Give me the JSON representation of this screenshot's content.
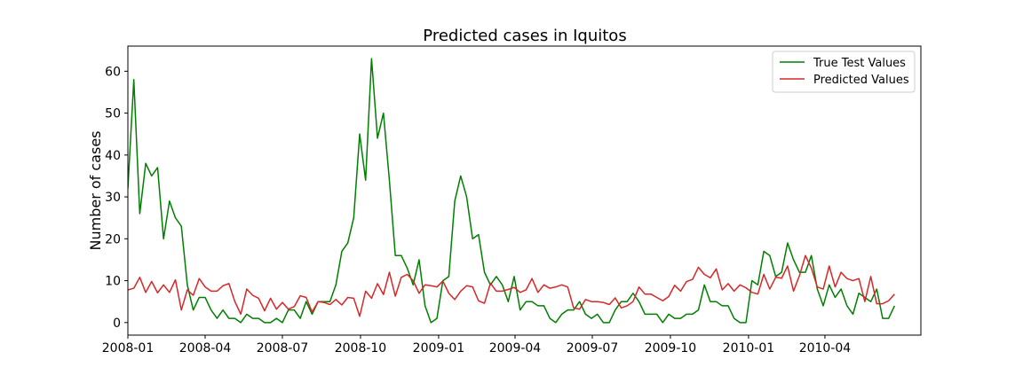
{
  "chart_data": {
    "type": "line",
    "title": "Predicted cases in Iquitos",
    "xlabel": "",
    "ylabel": "Number of cases",
    "xlim": [
      "2008-01-01",
      "2010-07-23"
    ],
    "ylim": [
      -3,
      66
    ],
    "yticks": [
      0,
      10,
      20,
      30,
      40,
      50,
      60
    ],
    "xticks": [
      {
        "date": "2008-01-01",
        "label": "2008-01"
      },
      {
        "date": "2008-04-01",
        "label": "2008-04"
      },
      {
        "date": "2008-07-01",
        "label": "2008-07"
      },
      {
        "date": "2008-10-01",
        "label": "2008-10"
      },
      {
        "date": "2009-01-01",
        "label": "2009-01"
      },
      {
        "date": "2009-04-01",
        "label": "2009-04"
      },
      {
        "date": "2009-07-01",
        "label": "2009-07"
      },
      {
        "date": "2009-10-01",
        "label": "2009-10"
      },
      {
        "date": "2010-01-01",
        "label": "2010-01"
      },
      {
        "date": "2010-04-01",
        "label": "2010-04"
      }
    ],
    "grid": false,
    "legend_position": "top-right",
    "x_start": "2008-01-01",
    "x_interval": "weekly",
    "series": [
      {
        "name": "True Test Values",
        "color": "#007f00",
        "values": [
          32,
          58,
          26,
          38,
          35,
          37,
          20,
          29,
          25,
          23,
          9,
          3,
          6,
          6,
          3,
          1,
          3,
          1,
          1,
          0,
          2,
          1,
          1,
          0,
          0,
          1,
          0,
          3,
          3,
          1,
          5,
          2,
          5,
          5,
          5,
          9,
          17,
          19,
          25,
          45,
          34,
          63,
          44,
          50,
          34,
          16,
          16,
          13,
          9,
          15,
          4,
          0,
          1,
          10,
          11,
          29,
          35,
          30,
          20,
          21,
          12,
          9,
          11,
          9,
          5,
          11,
          3,
          5,
          5,
          4,
          4,
          1,
          0,
          2,
          3,
          3,
          5,
          2,
          1,
          2,
          0,
          0,
          3,
          5,
          5,
          7,
          5,
          2,
          2,
          2,
          0,
          2,
          1,
          1,
          2,
          2,
          3,
          9,
          5,
          5,
          4,
          4,
          1,
          0,
          0,
          10,
          9,
          17,
          16,
          11,
          12,
          19,
          15,
          12,
          12,
          16,
          8,
          4,
          9,
          6,
          8,
          4,
          2,
          7,
          6,
          5,
          8,
          1,
          1,
          4
        ]
      },
      {
        "name": "Predicted Values",
        "color": "#d62728",
        "values": [
          7.8,
          8.2,
          10.8,
          7.2,
          9.8,
          7.1,
          9.0,
          7.2,
          10.2,
          3.0,
          7.8,
          6.5,
          10.5,
          8.5,
          7.5,
          7.5,
          8.8,
          9.3,
          5.0,
          2.0,
          8.0,
          6.5,
          5.8,
          2.8,
          5.8,
          3.2,
          4.8,
          3.2,
          3.8,
          6.4,
          6.0,
          2.5,
          5.0,
          4.8,
          4.3,
          5.5,
          4.2,
          6.0,
          5.8,
          1.5,
          7.5,
          5.8,
          9.3,
          6.7,
          12.0,
          6.3,
          10.8,
          11.5,
          10.0,
          7.0,
          9.0,
          8.8,
          8.5,
          9.9,
          7.0,
          5.5,
          7.5,
          8.8,
          8.5,
          5.2,
          4.6,
          9.4,
          7.5,
          7.5,
          7.9,
          8.4,
          7.2,
          7.8,
          10.5,
          7.2,
          9.0,
          8.2,
          8.5,
          9.0,
          8.5,
          3.5,
          3.2,
          5.5,
          5.0,
          5.0,
          4.8,
          4.3,
          5.9,
          3.5,
          4.0,
          5.0,
          8.5,
          6.8,
          6.8,
          6.0,
          5.2,
          6.2,
          8.9,
          7.5,
          9.8,
          10.3,
          13.2,
          11.5,
          10.7,
          12.8,
          7.8,
          9.3,
          7.5,
          9.0,
          8.3,
          7.2,
          6.8,
          11.5,
          8.0,
          10.8,
          10.6,
          13.5,
          7.5,
          11.2,
          16.0,
          13.0,
          8.5,
          8.0,
          13.5,
          8.5,
          12.0,
          10.5,
          10.0,
          10.5,
          5.0,
          11.0,
          4.5,
          4.5,
          5.2,
          6.8
        ]
      }
    ]
  }
}
